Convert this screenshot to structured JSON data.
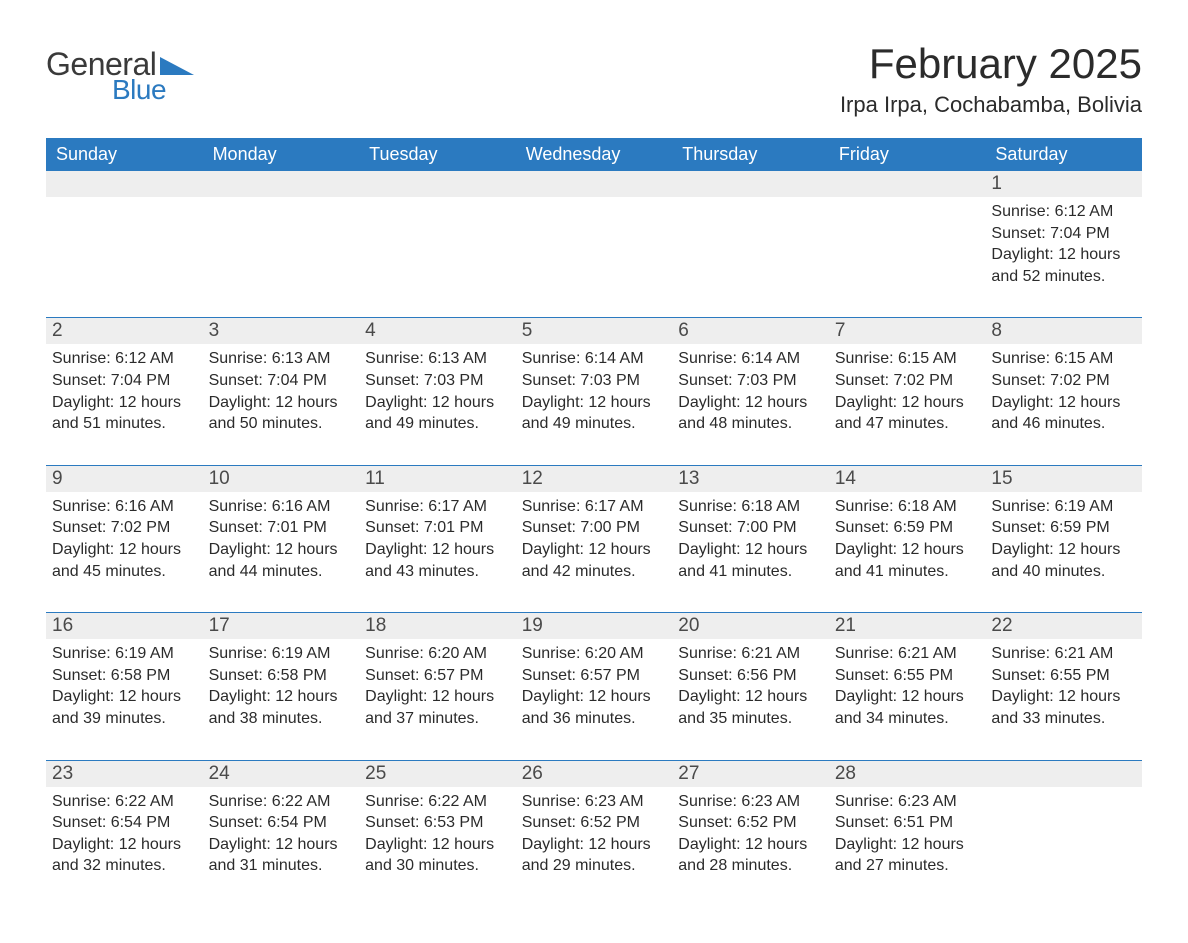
{
  "brand": {
    "general": "General",
    "blue": "Blue"
  },
  "title": {
    "month": "February 2025",
    "location": "Irpa Irpa, Cochabamba, Bolivia"
  },
  "colors": {
    "brand_blue": "#2b7ac0",
    "row_grey": "#eeeeee",
    "text_dark": "#2b2b2b",
    "background": "#ffffff"
  },
  "dow": [
    "Sunday",
    "Monday",
    "Tuesday",
    "Wednesday",
    "Thursday",
    "Friday",
    "Saturday"
  ],
  "weeks": [
    [
      null,
      null,
      null,
      null,
      null,
      null,
      {
        "n": "1",
        "sr": "Sunrise: 6:12 AM",
        "ss": "Sunset: 7:04 PM",
        "d1": "Daylight: 12 hours",
        "d2": "and 52 minutes."
      }
    ],
    [
      {
        "n": "2",
        "sr": "Sunrise: 6:12 AM",
        "ss": "Sunset: 7:04 PM",
        "d1": "Daylight: 12 hours",
        "d2": "and 51 minutes."
      },
      {
        "n": "3",
        "sr": "Sunrise: 6:13 AM",
        "ss": "Sunset: 7:04 PM",
        "d1": "Daylight: 12 hours",
        "d2": "and 50 minutes."
      },
      {
        "n": "4",
        "sr": "Sunrise: 6:13 AM",
        "ss": "Sunset: 7:03 PM",
        "d1": "Daylight: 12 hours",
        "d2": "and 49 minutes."
      },
      {
        "n": "5",
        "sr": "Sunrise: 6:14 AM",
        "ss": "Sunset: 7:03 PM",
        "d1": "Daylight: 12 hours",
        "d2": "and 49 minutes."
      },
      {
        "n": "6",
        "sr": "Sunrise: 6:14 AM",
        "ss": "Sunset: 7:03 PM",
        "d1": "Daylight: 12 hours",
        "d2": "and 48 minutes."
      },
      {
        "n": "7",
        "sr": "Sunrise: 6:15 AM",
        "ss": "Sunset: 7:02 PM",
        "d1": "Daylight: 12 hours",
        "d2": "and 47 minutes."
      },
      {
        "n": "8",
        "sr": "Sunrise: 6:15 AM",
        "ss": "Sunset: 7:02 PM",
        "d1": "Daylight: 12 hours",
        "d2": "and 46 minutes."
      }
    ],
    [
      {
        "n": "9",
        "sr": "Sunrise: 6:16 AM",
        "ss": "Sunset: 7:02 PM",
        "d1": "Daylight: 12 hours",
        "d2": "and 45 minutes."
      },
      {
        "n": "10",
        "sr": "Sunrise: 6:16 AM",
        "ss": "Sunset: 7:01 PM",
        "d1": "Daylight: 12 hours",
        "d2": "and 44 minutes."
      },
      {
        "n": "11",
        "sr": "Sunrise: 6:17 AM",
        "ss": "Sunset: 7:01 PM",
        "d1": "Daylight: 12 hours",
        "d2": "and 43 minutes."
      },
      {
        "n": "12",
        "sr": "Sunrise: 6:17 AM",
        "ss": "Sunset: 7:00 PM",
        "d1": "Daylight: 12 hours",
        "d2": "and 42 minutes."
      },
      {
        "n": "13",
        "sr": "Sunrise: 6:18 AM",
        "ss": "Sunset: 7:00 PM",
        "d1": "Daylight: 12 hours",
        "d2": "and 41 minutes."
      },
      {
        "n": "14",
        "sr": "Sunrise: 6:18 AM",
        "ss": "Sunset: 6:59 PM",
        "d1": "Daylight: 12 hours",
        "d2": "and 41 minutes."
      },
      {
        "n": "15",
        "sr": "Sunrise: 6:19 AM",
        "ss": "Sunset: 6:59 PM",
        "d1": "Daylight: 12 hours",
        "d2": "and 40 minutes."
      }
    ],
    [
      {
        "n": "16",
        "sr": "Sunrise: 6:19 AM",
        "ss": "Sunset: 6:58 PM",
        "d1": "Daylight: 12 hours",
        "d2": "and 39 minutes."
      },
      {
        "n": "17",
        "sr": "Sunrise: 6:19 AM",
        "ss": "Sunset: 6:58 PM",
        "d1": "Daylight: 12 hours",
        "d2": "and 38 minutes."
      },
      {
        "n": "18",
        "sr": "Sunrise: 6:20 AM",
        "ss": "Sunset: 6:57 PM",
        "d1": "Daylight: 12 hours",
        "d2": "and 37 minutes."
      },
      {
        "n": "19",
        "sr": "Sunrise: 6:20 AM",
        "ss": "Sunset: 6:57 PM",
        "d1": "Daylight: 12 hours",
        "d2": "and 36 minutes."
      },
      {
        "n": "20",
        "sr": "Sunrise: 6:21 AM",
        "ss": "Sunset: 6:56 PM",
        "d1": "Daylight: 12 hours",
        "d2": "and 35 minutes."
      },
      {
        "n": "21",
        "sr": "Sunrise: 6:21 AM",
        "ss": "Sunset: 6:55 PM",
        "d1": "Daylight: 12 hours",
        "d2": "and 34 minutes."
      },
      {
        "n": "22",
        "sr": "Sunrise: 6:21 AM",
        "ss": "Sunset: 6:55 PM",
        "d1": "Daylight: 12 hours",
        "d2": "and 33 minutes."
      }
    ],
    [
      {
        "n": "23",
        "sr": "Sunrise: 6:22 AM",
        "ss": "Sunset: 6:54 PM",
        "d1": "Daylight: 12 hours",
        "d2": "and 32 minutes."
      },
      {
        "n": "24",
        "sr": "Sunrise: 6:22 AM",
        "ss": "Sunset: 6:54 PM",
        "d1": "Daylight: 12 hours",
        "d2": "and 31 minutes."
      },
      {
        "n": "25",
        "sr": "Sunrise: 6:22 AM",
        "ss": "Sunset: 6:53 PM",
        "d1": "Daylight: 12 hours",
        "d2": "and 30 minutes."
      },
      {
        "n": "26",
        "sr": "Sunrise: 6:23 AM",
        "ss": "Sunset: 6:52 PM",
        "d1": "Daylight: 12 hours",
        "d2": "and 29 minutes."
      },
      {
        "n": "27",
        "sr": "Sunrise: 6:23 AM",
        "ss": "Sunset: 6:52 PM",
        "d1": "Daylight: 12 hours",
        "d2": "and 28 minutes."
      },
      {
        "n": "28",
        "sr": "Sunrise: 6:23 AM",
        "ss": "Sunset: 6:51 PM",
        "d1": "Daylight: 12 hours",
        "d2": "and 27 minutes."
      },
      null
    ]
  ]
}
